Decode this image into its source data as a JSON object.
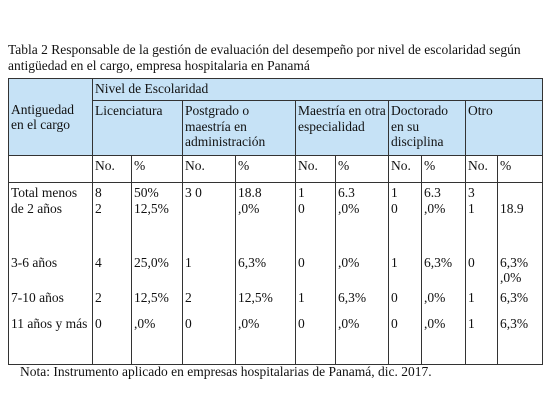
{
  "header": {
    "title": "Tabla 2   Responsable de la gestión de evaluación del desempeño por nivel de escolaridad según antigüedad en el cargo, empresa hospitalaria en Panamá"
  },
  "table": {
    "corner": "Antiguedad en el cargo",
    "group": "Nivel de Escolaridad",
    "levels": [
      "Licenciatura",
      "Postgrado o maestría en administración",
      "Maestría en otra especialidad",
      "Doctorado en su disciplina",
      "Otro"
    ],
    "subheads": [
      "No.",
      "%",
      "No.",
      "%",
      "No.",
      "%",
      "No.",
      "%",
      "No.",
      "%"
    ],
    "rows": [
      {
        "label": "Total menos de 2 años",
        "cells": [
          "8\n2",
          "50%\n12,5%",
          "3   0",
          "18.8\n,0%",
          "1\n0",
          "6.3\n,0%",
          "1\n0",
          "6.3\n,0%",
          "3\n1",
          "\n18.9"
        ]
      },
      {
        "label": "3-6 años",
        "cells": [
          "4",
          "25,0%",
          "1",
          "6,3%",
          "0",
          ",0%",
          "1",
          "6,3%",
          "0",
          "6,3%\n,0%"
        ]
      },
      {
        "label": "7-10 años",
        "cells": [
          "2",
          "12,5%",
          "2",
          "12,5%",
          "1",
          "6,3%",
          "0",
          ",0%",
          "1",
          "6,3%"
        ]
      },
      {
        "label": "11 años y más",
        "cells": [
          "0",
          ",0%",
          "0",
          ",0%",
          "0",
          ",0%",
          "0",
          ",0%",
          "1",
          "6,3%"
        ]
      }
    ]
  },
  "note": "Nota: Instrumento aplicado en empresas hospitalarias de Panamá, dic. 2017."
}
